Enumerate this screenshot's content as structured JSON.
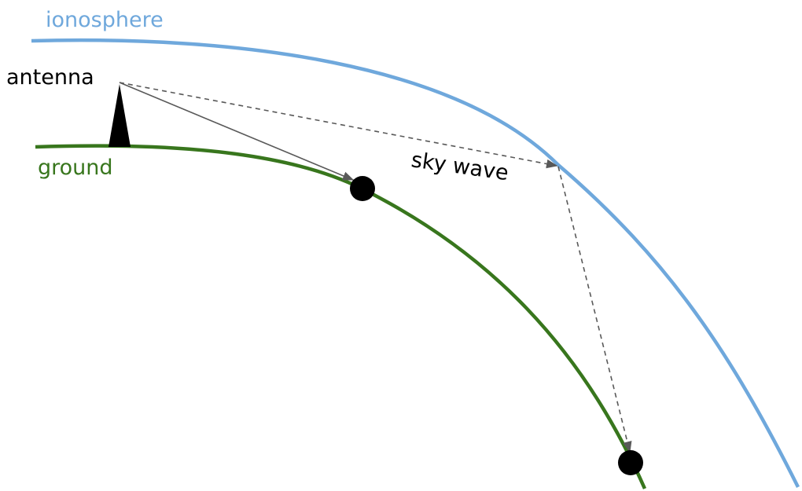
{
  "labels": {
    "ionosphere": "ionosphere",
    "antenna": "antenna",
    "ground": "ground",
    "sky_wave": "sky wave"
  },
  "colors": {
    "ionosphere": "#6fa8dc",
    "ground": "#38761d",
    "text": "#000000",
    "arrow": "#595959",
    "antenna": "#000000",
    "receiver": "#000000"
  }
}
